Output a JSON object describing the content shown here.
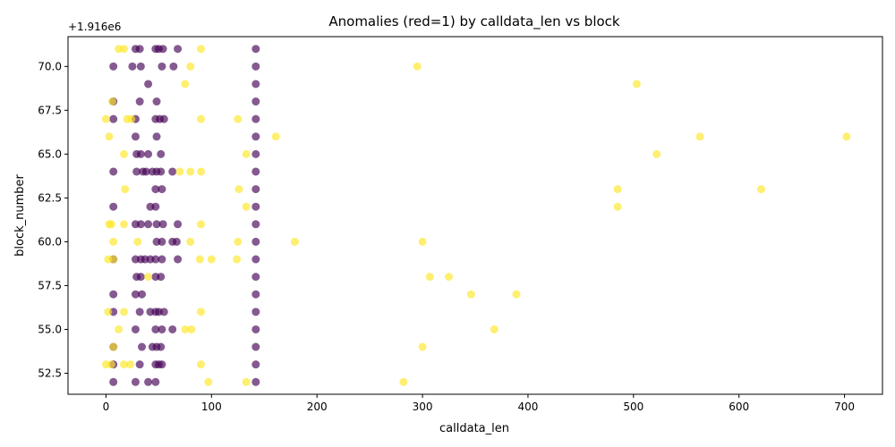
{
  "chart_data": {
    "type": "scatter",
    "title": "Anomalies (red=1) by calldata_len vs block",
    "xlabel": "calldata_len",
    "ylabel": "block_number",
    "y_offset_label": "+1.916e6",
    "xlim": [
      -36,
      736
    ],
    "ylim": [
      1916051.3,
      1916071.7
    ],
    "x_ticks": [
      0,
      100,
      200,
      300,
      400,
      500,
      600,
      700
    ],
    "y_ticks": [
      52.5,
      55.0,
      57.5,
      60.0,
      62.5,
      65.0,
      67.5,
      70.0
    ],
    "y_tick_labels": [
      "52.5",
      "55.0",
      "57.5",
      "60.0",
      "62.5",
      "65.0",
      "67.5",
      "70.0"
    ],
    "grid": false,
    "colors": {
      "normal": "#440154",
      "anomaly": "#fde725"
    },
    "series": [
      {
        "points": [
          [
            28,
            1916071
          ],
          [
            32,
            1916071
          ],
          [
            47,
            1916071
          ],
          [
            50,
            1916071
          ],
          [
            54,
            1916071
          ],
          [
            68,
            1916071
          ],
          [
            7,
            1916070
          ],
          [
            25,
            1916070
          ],
          [
            33,
            1916070
          ],
          [
            53,
            1916070
          ],
          [
            64,
            1916070
          ],
          [
            40,
            1916069
          ],
          [
            7,
            1916068
          ],
          [
            32,
            1916068
          ],
          [
            48,
            1916068
          ],
          [
            7,
            1916067
          ],
          [
            28,
            1916067
          ],
          [
            47,
            1916067
          ],
          [
            51,
            1916067
          ],
          [
            55,
            1916067
          ],
          [
            28,
            1916066
          ],
          [
            48,
            1916066
          ],
          [
            29,
            1916065
          ],
          [
            33,
            1916065
          ],
          [
            40,
            1916065
          ],
          [
            52,
            1916065
          ],
          [
            7,
            1916064
          ],
          [
            29,
            1916064
          ],
          [
            35,
            1916064
          ],
          [
            38,
            1916064
          ],
          [
            44,
            1916064
          ],
          [
            48,
            1916064
          ],
          [
            52,
            1916064
          ],
          [
            63,
            1916064
          ],
          [
            47,
            1916063
          ],
          [
            53,
            1916063
          ],
          [
            7,
            1916062
          ],
          [
            42,
            1916062
          ],
          [
            47,
            1916062
          ],
          [
            28,
            1916061
          ],
          [
            33,
            1916061
          ],
          [
            40,
            1916061
          ],
          [
            48,
            1916061
          ],
          [
            54,
            1916061
          ],
          [
            68,
            1916061
          ],
          [
            48,
            1916060
          ],
          [
            53,
            1916060
          ],
          [
            63,
            1916060
          ],
          [
            67,
            1916060
          ],
          [
            7,
            1916059
          ],
          [
            28,
            1916059
          ],
          [
            33,
            1916059
          ],
          [
            37,
            1916059
          ],
          [
            42,
            1916059
          ],
          [
            47,
            1916059
          ],
          [
            53,
            1916059
          ],
          [
            68,
            1916059
          ],
          [
            29,
            1916058
          ],
          [
            33,
            1916058
          ],
          [
            47,
            1916058
          ],
          [
            52,
            1916058
          ],
          [
            7,
            1916057
          ],
          [
            28,
            1916057
          ],
          [
            34,
            1916057
          ],
          [
            7,
            1916056
          ],
          [
            32,
            1916056
          ],
          [
            42,
            1916056
          ],
          [
            47,
            1916056
          ],
          [
            50,
            1916056
          ],
          [
            55,
            1916056
          ],
          [
            28,
            1916055
          ],
          [
            47,
            1916055
          ],
          [
            53,
            1916055
          ],
          [
            63,
            1916055
          ],
          [
            7,
            1916054
          ],
          [
            34,
            1916054
          ],
          [
            44,
            1916054
          ],
          [
            48,
            1916054
          ],
          [
            52,
            1916054
          ],
          [
            7,
            1916053
          ],
          [
            32,
            1916053
          ],
          [
            47,
            1916053
          ],
          [
            50,
            1916053
          ],
          [
            53,
            1916053
          ],
          [
            7,
            1916052
          ],
          [
            28,
            1916052
          ],
          [
            40,
            1916052
          ],
          [
            47,
            1916052
          ],
          [
            142,
            1916071
          ],
          [
            142,
            1916070
          ],
          [
            142,
            1916069
          ],
          [
            142,
            1916068
          ],
          [
            142,
            1916067
          ],
          [
            142,
            1916066
          ],
          [
            142,
            1916065
          ],
          [
            142,
            1916064
          ],
          [
            142,
            1916063
          ],
          [
            142,
            1916062
          ],
          [
            142,
            1916061
          ],
          [
            142,
            1916060
          ],
          [
            142,
            1916059
          ],
          [
            142,
            1916058
          ],
          [
            142,
            1916057
          ],
          [
            142,
            1916056
          ],
          [
            142,
            1916055
          ],
          [
            142,
            1916054
          ],
          [
            142,
            1916053
          ],
          [
            142,
            1916052
          ]
        ]
      },
      {
        "points": [
          [
            12,
            1916071
          ],
          [
            17,
            1916071
          ],
          [
            90,
            1916071
          ],
          [
            80,
            1916070
          ],
          [
            295,
            1916070
          ],
          [
            75,
            1916069
          ],
          [
            503,
            1916069
          ],
          [
            6,
            1916068
          ],
          [
            0,
            1916067
          ],
          [
            20,
            1916067
          ],
          [
            24,
            1916067
          ],
          [
            90,
            1916067
          ],
          [
            125,
            1916067
          ],
          [
            3,
            1916066
          ],
          [
            161,
            1916066
          ],
          [
            563,
            1916066
          ],
          [
            702,
            1916066
          ],
          [
            17,
            1916065
          ],
          [
            133,
            1916065
          ],
          [
            522,
            1916065
          ],
          [
            70,
            1916064
          ],
          [
            80,
            1916064
          ],
          [
            90,
            1916064
          ],
          [
            18,
            1916063
          ],
          [
            126,
            1916063
          ],
          [
            485,
            1916063
          ],
          [
            621,
            1916063
          ],
          [
            133,
            1916062
          ],
          [
            485,
            1916062
          ],
          [
            3,
            1916061
          ],
          [
            5,
            1916061
          ],
          [
            17,
            1916061
          ],
          [
            90,
            1916061
          ],
          [
            7,
            1916060
          ],
          [
            30,
            1916060
          ],
          [
            80,
            1916060
          ],
          [
            125,
            1916060
          ],
          [
            179,
            1916060
          ],
          [
            300,
            1916060
          ],
          [
            2,
            1916059
          ],
          [
            7,
            1916059
          ],
          [
            89,
            1916059
          ],
          [
            100,
            1916059
          ],
          [
            124,
            1916059
          ],
          [
            40,
            1916058
          ],
          [
            307,
            1916058
          ],
          [
            325,
            1916058
          ],
          [
            346,
            1916057
          ],
          [
            389,
            1916057
          ],
          [
            2,
            1916056
          ],
          [
            17,
            1916056
          ],
          [
            90,
            1916056
          ],
          [
            12,
            1916055
          ],
          [
            75,
            1916055
          ],
          [
            81,
            1916055
          ],
          [
            368,
            1916055
          ],
          [
            7,
            1916054
          ],
          [
            300,
            1916054
          ],
          [
            0,
            1916053
          ],
          [
            5,
            1916053
          ],
          [
            17,
            1916053
          ],
          [
            23,
            1916053
          ],
          [
            90,
            1916053
          ],
          [
            97,
            1916052
          ],
          [
            133,
            1916052
          ],
          [
            282,
            1916052
          ]
        ]
      }
    ]
  }
}
